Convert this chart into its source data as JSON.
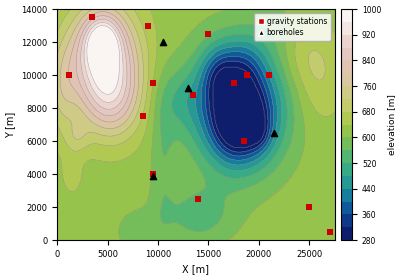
{
  "xlim": [
    0,
    27500
  ],
  "ylim": [
    0,
    14000
  ],
  "xlabel": "X [m]",
  "ylabel": "Y [m]",
  "colorbar_label": "elevation [m]",
  "colorbar_ticks": [
    280,
    360,
    440,
    520,
    600,
    680,
    760,
    840,
    920,
    1000
  ],
  "elev_min": 280,
  "elev_max": 1000,
  "gravity_stations": [
    [
      1200,
      10000
    ],
    [
      3500,
      13500
    ],
    [
      9000,
      13000
    ],
    [
      9500,
      9500
    ],
    [
      8500,
      7500
    ],
    [
      9500,
      4000
    ],
    [
      13500,
      8800
    ],
    [
      15000,
      12500
    ],
    [
      17500,
      9500
    ],
    [
      18800,
      10000
    ],
    [
      18500,
      6000
    ],
    [
      21000,
      10000
    ],
    [
      14000,
      2500
    ],
    [
      25000,
      2000
    ],
    [
      27000,
      500
    ]
  ],
  "boreholes": [
    [
      10500,
      12000
    ],
    [
      13000,
      9200
    ],
    [
      9500,
      3900
    ],
    [
      21500,
      6500
    ]
  ],
  "contour_levels": 18,
  "seed": 42
}
